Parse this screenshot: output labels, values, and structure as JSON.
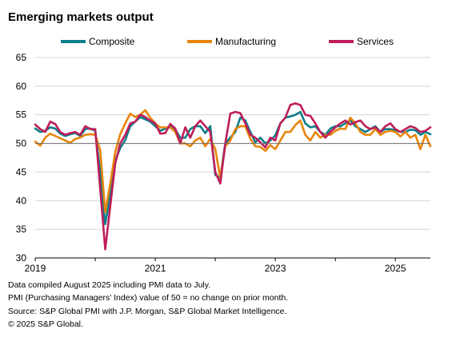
{
  "title": "Emerging markets output",
  "footnotes": [
    "Data compiled August 2025 including PMI data to July.",
    "PMI (Purchasing Managers' Index) value of 50 = no change on prior month.",
    "Source: S&P Global PMI with J.P. Morgan, S&P Global Market Intelligence.",
    "© 2025 S&P Global."
  ],
  "chart_data": {
    "type": "line",
    "title": "Emerging markets output",
    "xlabel": "",
    "ylabel": "",
    "ylim": [
      30,
      65
    ],
    "yticks": [
      30,
      35,
      40,
      45,
      50,
      55,
      60,
      65
    ],
    "xtick_labels": [
      "2019",
      "2021",
      "2023",
      "2025"
    ],
    "x_start": "2019-01",
    "x_end": "2025-07",
    "grid": "horizontal",
    "reference_line": 50,
    "legend_position": "top",
    "series": [
      {
        "name": "Composite",
        "color": "#0b7e8a",
        "values": [
          52.6,
          52.0,
          52.2,
          52.8,
          52.6,
          51.7,
          51.3,
          51.6,
          51.8,
          51.3,
          52.5,
          52.6,
          52.2,
          45.0,
          35.9,
          41.0,
          47.0,
          49.2,
          50.6,
          53.0,
          53.8,
          54.6,
          54.2,
          53.8,
          53.0,
          52.2,
          52.6,
          53.0,
          52.4,
          51.0,
          51.0,
          52.5,
          53.0,
          53.0,
          51.8,
          53.0,
          44.5,
          44.0,
          50.0,
          51.0,
          52.0,
          54.5,
          54.0,
          52.0,
          50.2,
          51.0,
          50.0,
          50.5,
          51.4,
          53.5,
          54.5,
          54.7,
          55.0,
          55.5,
          53.5,
          52.8,
          53.0,
          52.0,
          51.5,
          52.6,
          53.0,
          53.0,
          53.5,
          54.0,
          53.0,
          52.5,
          52.0,
          52.5,
          53.0,
          52.0,
          52.5,
          52.5,
          52.3,
          52.0,
          52.0,
          52.4,
          52.3,
          51.5,
          52.0,
          51.6
        ]
      },
      {
        "name": "Manufacturing",
        "color": "#e8850c",
        "values": [
          50.3,
          49.6,
          51.0,
          51.7,
          51.3,
          50.9,
          50.5,
          50.1,
          50.8,
          51.0,
          51.5,
          51.6,
          51.5,
          48.8,
          38.0,
          43.0,
          48.5,
          51.6,
          53.5,
          55.2,
          54.6,
          55.0,
          55.8,
          54.5,
          53.5,
          52.8,
          52.8,
          52.8,
          52.0,
          50.0,
          50.0,
          49.5,
          50.5,
          51.0,
          49.5,
          50.8,
          49.0,
          44.0,
          49.5,
          50.5,
          52.5,
          53.0,
          53.0,
          50.8,
          49.5,
          49.4,
          48.7,
          49.7,
          49.0,
          50.5,
          52.0,
          52.0,
          53.2,
          54.0,
          51.5,
          50.5,
          52.0,
          51.0,
          51.5,
          51.5,
          52.2,
          52.6,
          52.5,
          54.5,
          53.5,
          52.0,
          51.5,
          51.5,
          52.5,
          51.5,
          52.0,
          52.2,
          52.0,
          51.2,
          52.0,
          51.0,
          51.5,
          49.0,
          51.5,
          49.5
        ]
      },
      {
        "name": "Services",
        "color": "#be1e5a",
        "values": [
          53.3,
          52.5,
          52.0,
          53.8,
          53.4,
          52.0,
          51.5,
          51.8,
          52.0,
          51.5,
          53.0,
          52.5,
          52.5,
          42.0,
          31.5,
          39.0,
          46.5,
          50.0,
          51.5,
          53.5,
          53.8,
          55.0,
          54.6,
          54.0,
          53.5,
          51.7,
          51.8,
          53.4,
          52.6,
          50.0,
          52.8,
          51.0,
          53.0,
          54.0,
          53.0,
          52.0,
          45.0,
          43.0,
          50.0,
          55.2,
          55.5,
          55.3,
          53.5,
          51.5,
          51.0,
          50.2,
          49.3,
          51.0,
          50.5,
          53.5,
          54.5,
          56.7,
          57.0,
          56.7,
          55.0,
          54.8,
          53.5,
          52.0,
          51.0,
          52.0,
          52.8,
          53.5,
          54.0,
          53.3,
          53.7,
          54.0,
          53.0,
          52.5,
          52.8,
          52.0,
          53.0,
          53.5,
          52.5,
          52.0,
          52.5,
          53.0,
          52.7,
          52.0,
          52.2,
          52.8
        ]
      }
    ]
  }
}
